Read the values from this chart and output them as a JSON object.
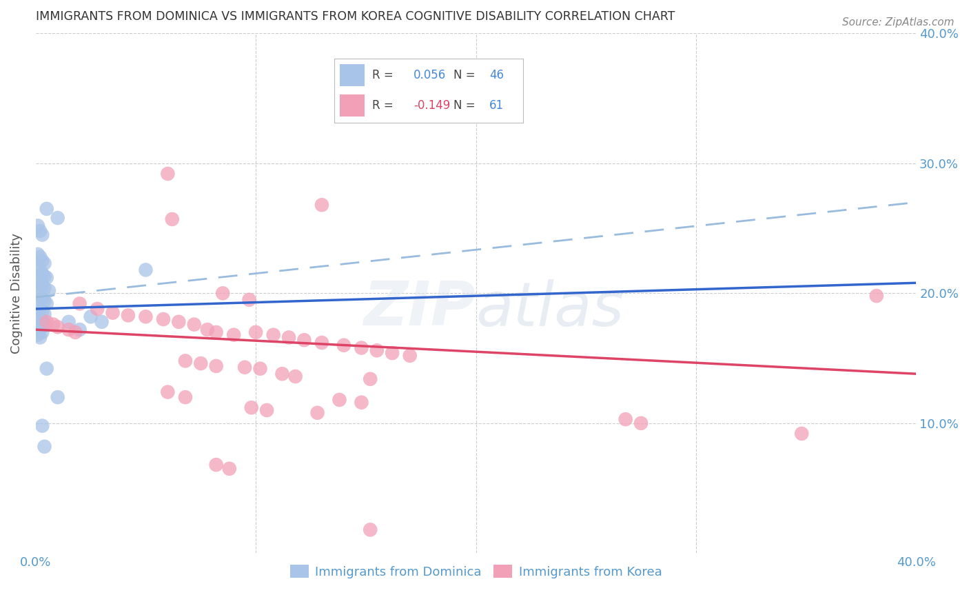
{
  "title": "IMMIGRANTS FROM DOMINICA VS IMMIGRANTS FROM KOREA COGNITIVE DISABILITY CORRELATION CHART",
  "source": "Source: ZipAtlas.com",
  "ylabel": "Cognitive Disability",
  "xlim": [
    0.0,
    0.4
  ],
  "ylim": [
    0.0,
    0.4
  ],
  "dominica_color": "#a8c4e8",
  "korea_color": "#f2a0b8",
  "dominica_line_color": "#3366cc",
  "korea_line_color": "#dd4466",
  "dominica_dash_color": "#99bbdd",
  "legend_R_color": "#4488dd",
  "legend_N_color": "#4488dd",
  "background_color": "#ffffff",
  "grid_color": "#cccccc",
  "axis_label_color": "#5599cc",
  "title_color": "#333333",
  "dominica_line": [
    0.0,
    0.188,
    0.4,
    0.208
  ],
  "korea_line": [
    0.0,
    0.172,
    0.4,
    0.138
  ],
  "dash_line": [
    0.0,
    0.197,
    0.4,
    0.27
  ],
  "dominica_points": [
    [
      0.005,
      0.265
    ],
    [
      0.01,
      0.258
    ],
    [
      0.001,
      0.252
    ],
    [
      0.002,
      0.248
    ],
    [
      0.003,
      0.245
    ],
    [
      0.001,
      0.23
    ],
    [
      0.002,
      0.228
    ],
    [
      0.003,
      0.225
    ],
    [
      0.004,
      0.223
    ],
    [
      0.001,
      0.22
    ],
    [
      0.002,
      0.218
    ],
    [
      0.003,
      0.215
    ],
    [
      0.004,
      0.213
    ],
    [
      0.005,
      0.212
    ],
    [
      0.001,
      0.21
    ],
    [
      0.002,
      0.208
    ],
    [
      0.003,
      0.206
    ],
    [
      0.004,
      0.204
    ],
    [
      0.006,
      0.202
    ],
    [
      0.001,
      0.2
    ],
    [
      0.002,
      0.198
    ],
    [
      0.003,
      0.196
    ],
    [
      0.004,
      0.194
    ],
    [
      0.005,
      0.192
    ],
    [
      0.001,
      0.19
    ],
    [
      0.002,
      0.188
    ],
    [
      0.003,
      0.186
    ],
    [
      0.004,
      0.184
    ],
    [
      0.001,
      0.182
    ],
    [
      0.002,
      0.18
    ],
    [
      0.003,
      0.178
    ],
    [
      0.004,
      0.176
    ],
    [
      0.001,
      0.174
    ],
    [
      0.002,
      0.172
    ],
    [
      0.003,
      0.17
    ],
    [
      0.001,
      0.168
    ],
    [
      0.002,
      0.166
    ],
    [
      0.05,
      0.218
    ],
    [
      0.015,
      0.178
    ],
    [
      0.02,
      0.172
    ],
    [
      0.025,
      0.182
    ],
    [
      0.03,
      0.178
    ],
    [
      0.005,
      0.142
    ],
    [
      0.01,
      0.12
    ],
    [
      0.003,
      0.098
    ],
    [
      0.004,
      0.082
    ]
  ],
  "korea_points": [
    [
      0.06,
      0.292
    ],
    [
      0.13,
      0.268
    ],
    [
      0.062,
      0.257
    ],
    [
      0.085,
      0.2
    ],
    [
      0.097,
      0.195
    ],
    [
      0.02,
      0.192
    ],
    [
      0.028,
      0.188
    ],
    [
      0.035,
      0.185
    ],
    [
      0.042,
      0.183
    ],
    [
      0.05,
      0.182
    ],
    [
      0.058,
      0.18
    ],
    [
      0.065,
      0.178
    ],
    [
      0.072,
      0.176
    ],
    [
      0.005,
      0.178
    ],
    [
      0.008,
      0.176
    ],
    [
      0.01,
      0.174
    ],
    [
      0.015,
      0.172
    ],
    [
      0.018,
      0.17
    ],
    [
      0.078,
      0.172
    ],
    [
      0.082,
      0.17
    ],
    [
      0.09,
      0.168
    ],
    [
      0.1,
      0.17
    ],
    [
      0.108,
      0.168
    ],
    [
      0.115,
      0.166
    ],
    [
      0.122,
      0.164
    ],
    [
      0.13,
      0.162
    ],
    [
      0.14,
      0.16
    ],
    [
      0.148,
      0.158
    ],
    [
      0.155,
      0.156
    ],
    [
      0.162,
      0.154
    ],
    [
      0.17,
      0.152
    ],
    [
      0.068,
      0.148
    ],
    [
      0.075,
      0.146
    ],
    [
      0.082,
      0.144
    ],
    [
      0.095,
      0.143
    ],
    [
      0.102,
      0.142
    ],
    [
      0.112,
      0.138
    ],
    [
      0.118,
      0.136
    ],
    [
      0.152,
      0.134
    ],
    [
      0.06,
      0.124
    ],
    [
      0.068,
      0.12
    ],
    [
      0.138,
      0.118
    ],
    [
      0.148,
      0.116
    ],
    [
      0.098,
      0.112
    ],
    [
      0.105,
      0.11
    ],
    [
      0.128,
      0.108
    ],
    [
      0.082,
      0.068
    ],
    [
      0.088,
      0.065
    ],
    [
      0.268,
      0.103
    ],
    [
      0.275,
      0.1
    ],
    [
      0.348,
      0.092
    ],
    [
      0.382,
      0.198
    ],
    [
      0.152,
      0.018
    ]
  ]
}
